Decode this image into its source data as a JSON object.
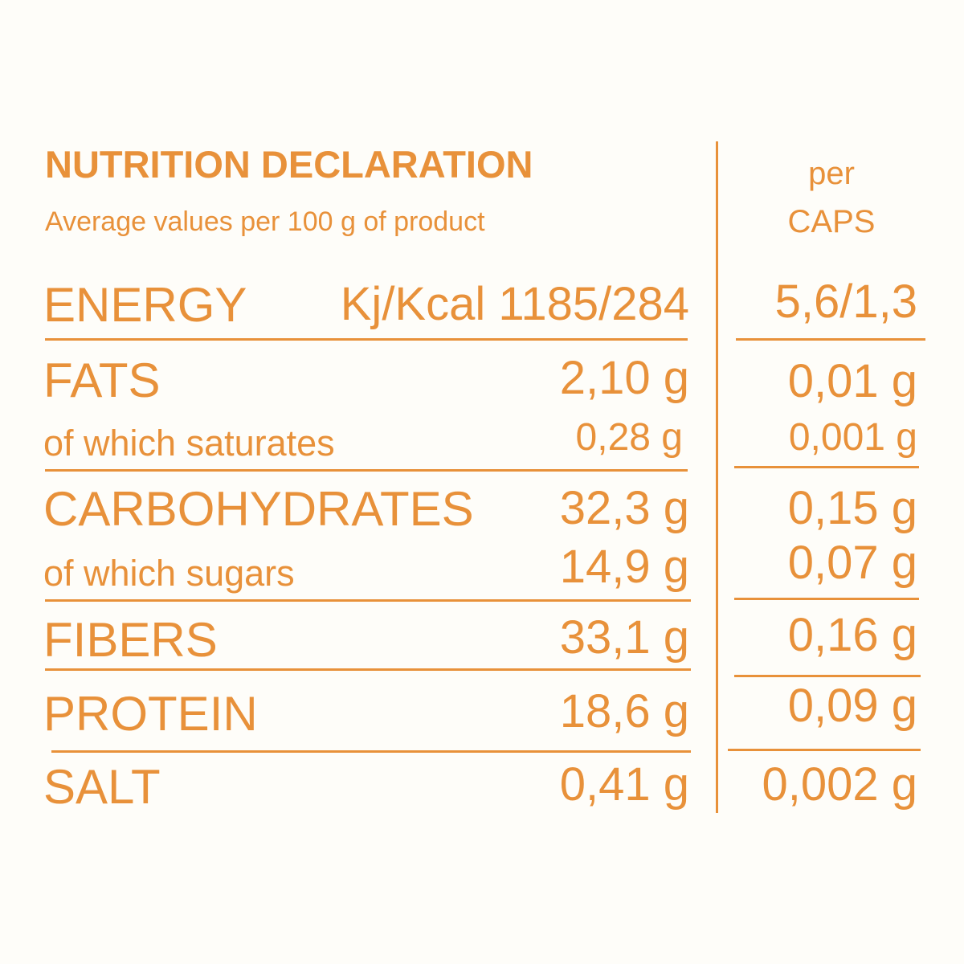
{
  "header": {
    "title": "NUTRITION DECLARATION",
    "subtitle": "Average values per 100 g of product",
    "per_line1": "per",
    "per_line2": "CAPS"
  },
  "rows": {
    "energy": {
      "label": "ENERGY",
      "unit": "Kj/Kcal",
      "per100": "1185/284",
      "per_caps": "5,6/1,3"
    },
    "fats": {
      "label": "FATS",
      "per100": "2,10 g",
      "per_caps": "0,01 g"
    },
    "saturates": {
      "label": "of which saturates",
      "per100": "0,28 g",
      "per_caps": "0,001 g"
    },
    "carbohydrates": {
      "label": "CARBOHYDRATES",
      "per100": "32,3 g",
      "per_caps": "0,15 g"
    },
    "sugars": {
      "label": "of which sugars",
      "per100": "14,9 g",
      "per_caps": "0,07 g"
    },
    "fibers": {
      "label": "FIBERS",
      "per100": "33,1 g",
      "per_caps": "0,16 g"
    },
    "protein": {
      "label": "PROTEIN",
      "per100": "18,6 g",
      "per_caps": "0,09 g"
    },
    "salt": {
      "label": "SALT",
      "per100": "0,41 g",
      "per_caps": "0,002 g"
    }
  },
  "colors": {
    "text": "#e8913a",
    "background": "#fefdf9"
  }
}
